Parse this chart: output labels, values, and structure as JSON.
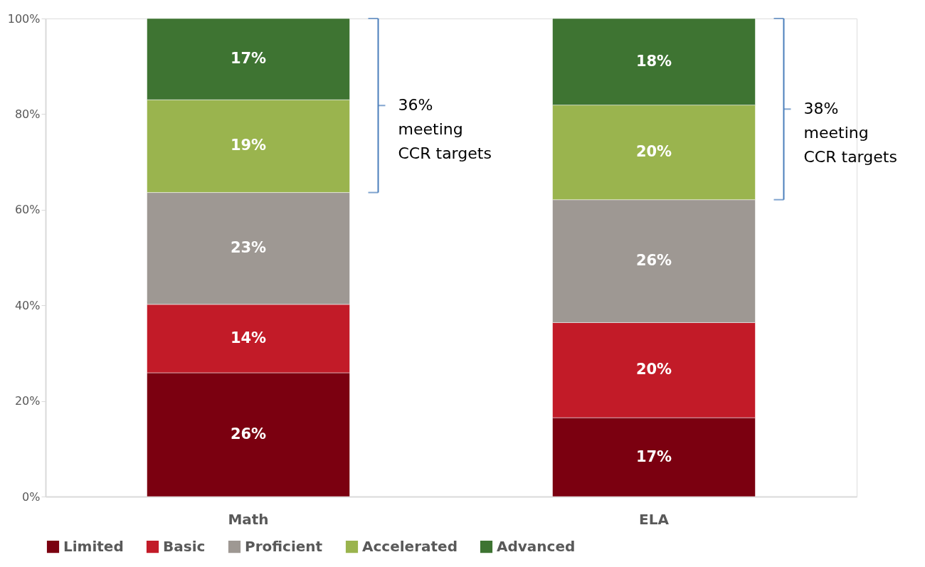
{
  "chart_data": {
    "type": "bar",
    "stacked": true,
    "categories": [
      "Math",
      "ELA"
    ],
    "series": [
      {
        "name": "Limited",
        "color": "#7b0010",
        "values": [
          25.9,
          16.5
        ],
        "value_labels": [
          "26%",
          "17%"
        ]
      },
      {
        "name": "Basic",
        "color": "#c21b28",
        "values": [
          14.3,
          19.9
        ],
        "value_labels": [
          "14%",
          "20%"
        ]
      },
      {
        "name": "Proficient",
        "color": "#9e9893",
        "values": [
          23.4,
          25.7
        ],
        "value_labels": [
          "23%",
          "26%"
        ]
      },
      {
        "name": "Accelerated",
        "color": "#9ab44e",
        "values": [
          19.4,
          19.8
        ],
        "value_labels": [
          "19%",
          "20%"
        ]
      },
      {
        "name": "Advanced",
        "color": "#3e7432",
        "values": [
          17.0,
          18.1
        ],
        "value_labels": [
          "17%",
          "18%"
        ]
      }
    ],
    "ylim": [
      0,
      100
    ],
    "yticks": [
      {
        "value": 0,
        "label": "0%"
      },
      {
        "value": 20,
        "label": "20%"
      },
      {
        "value": 40,
        "label": "40%"
      },
      {
        "value": 60,
        "label": "60%"
      },
      {
        "value": 80,
        "label": "80%"
      },
      {
        "value": 100,
        "label": "100%"
      }
    ],
    "annotations": [
      "36%\nmeeting\nCCR targets",
      "38%\nmeeting\nCCR targets"
    ],
    "grid": false,
    "legend": "bottom"
  }
}
